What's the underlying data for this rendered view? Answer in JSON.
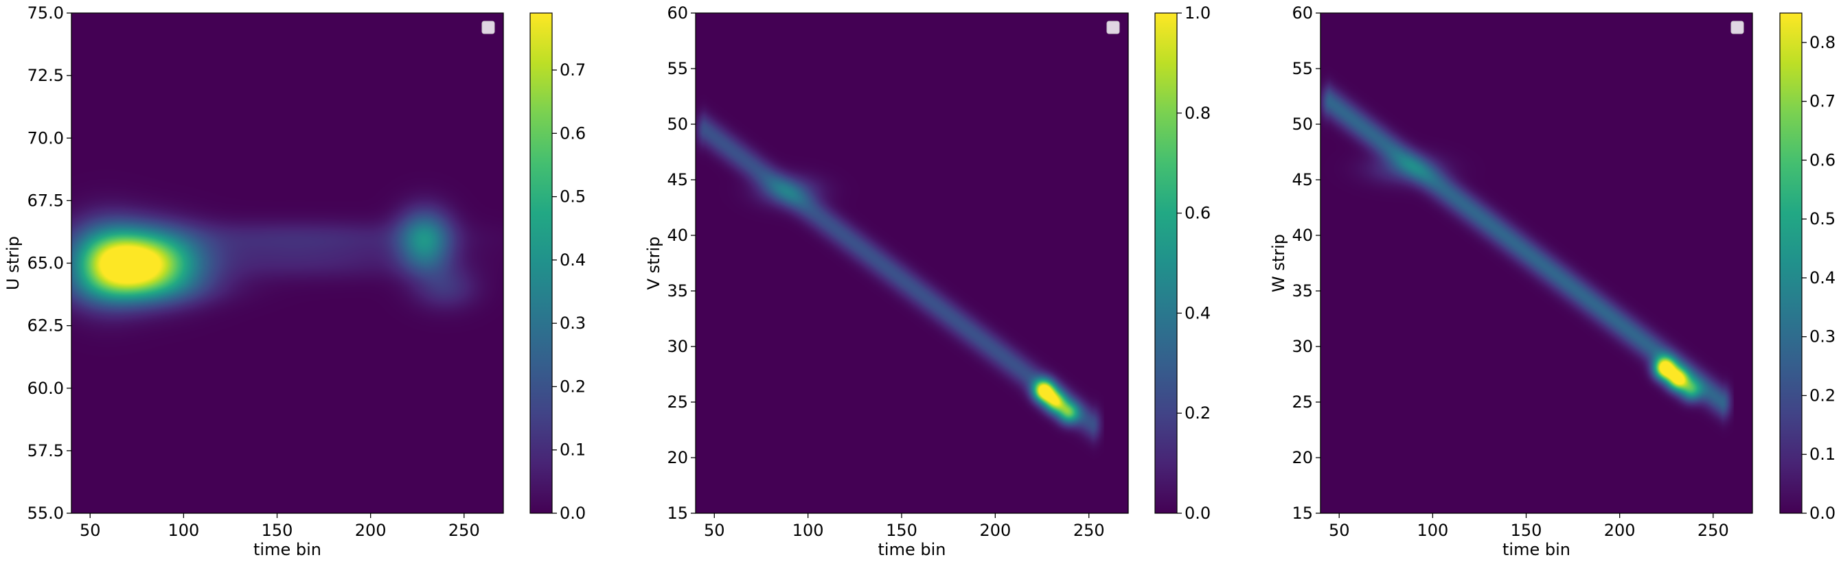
{
  "chart_data": [
    {
      "type": "heatmap",
      "xlabel": "time bin",
      "ylabel": "U strip",
      "xlim": [
        40,
        271
      ],
      "ylim": [
        55.0,
        75.0
      ],
      "xticks": [
        50,
        100,
        150,
        200,
        250
      ],
      "yticks": [
        55.0,
        57.5,
        60.0,
        62.5,
        65.0,
        67.5,
        70.0,
        72.5,
        75.0
      ],
      "ytick_labels": [
        "55.0",
        "57.5",
        "60.0",
        "62.5",
        "65.0",
        "67.5",
        "70.0",
        "72.5",
        "75.0"
      ],
      "colorbar": {
        "min": 0.0,
        "max": 0.79,
        "ticks": [
          0.0,
          0.1,
          0.2,
          0.3,
          0.4,
          0.5,
          0.6,
          0.7
        ],
        "tick_labels": [
          "0.0",
          "0.1",
          "0.2",
          "0.3",
          "0.4",
          "0.5",
          "0.6",
          "0.7"
        ]
      },
      "colormap": "viridis",
      "legend": "top-right",
      "legend_entries": [],
      "blobs": [
        {
          "x": 78,
          "y": 65.0,
          "sx": 20,
          "sy": 0.9,
          "value": 0.79
        },
        {
          "x": 58,
          "y": 65.0,
          "sx": 14,
          "sy": 1.1,
          "value": 0.35
        },
        {
          "x": 80,
          "y": 64.0,
          "sx": 28,
          "sy": 0.5,
          "value": 0.12
        },
        {
          "x": 160,
          "y": 66.0,
          "sx": 55,
          "sy": 0.5,
          "value": 0.1
        },
        {
          "x": 160,
          "y": 65.0,
          "sx": 50,
          "sy": 0.5,
          "value": 0.07
        },
        {
          "x": 229,
          "y": 66.0,
          "sx": 10,
          "sy": 0.8,
          "value": 0.36
        },
        {
          "x": 240,
          "y": 64.0,
          "sx": 12,
          "sy": 0.6,
          "value": 0.12
        },
        {
          "x": 230,
          "y": 65.0,
          "sx": 10,
          "sy": 0.5,
          "value": 0.06
        }
      ]
    },
    {
      "type": "heatmap",
      "xlabel": "time bin",
      "ylabel": "V strip",
      "xlim": [
        40,
        271
      ],
      "ylim": [
        15,
        60
      ],
      "xticks": [
        50,
        100,
        150,
        200,
        250
      ],
      "yticks": [
        15,
        20,
        25,
        30,
        35,
        40,
        45,
        50,
        55,
        60
      ],
      "ytick_labels": [
        "15",
        "20",
        "25",
        "30",
        "35",
        "40",
        "45",
        "50",
        "55",
        "60"
      ],
      "colorbar": {
        "min": 0.0,
        "max": 1.0,
        "ticks": [
          0.0,
          0.2,
          0.4,
          0.6,
          0.8,
          1.0
        ],
        "tick_labels": [
          "0.0",
          "0.2",
          "0.4",
          "0.6",
          "0.8",
          "1.0"
        ]
      },
      "colormap": "viridis",
      "legend": "top-right",
      "legend_entries": [],
      "track": {
        "start": [
          45,
          49.5
        ],
        "end": [
          252,
          23
        ],
        "sigma_strip": 1.0,
        "value": 0.25
      },
      "blobs": [
        {
          "x": 226,
          "y": 26,
          "sx": 4,
          "sy": 0.7,
          "value": 0.95
        },
        {
          "x": 232,
          "y": 25,
          "sx": 4,
          "sy": 0.7,
          "value": 0.7
        },
        {
          "x": 239,
          "y": 24,
          "sx": 4,
          "sy": 0.7,
          "value": 0.55
        },
        {
          "x": 90,
          "y": 44,
          "sx": 12,
          "sy": 1.0,
          "value": 0.2
        }
      ]
    },
    {
      "type": "heatmap",
      "xlabel": "time bin",
      "ylabel": "W strip",
      "xlim": [
        40,
        271
      ],
      "ylim": [
        15,
        60
      ],
      "xticks": [
        50,
        100,
        150,
        200,
        250
      ],
      "yticks": [
        15,
        20,
        25,
        30,
        35,
        40,
        45,
        50,
        55,
        60
      ],
      "ytick_labels": [
        "15",
        "20",
        "25",
        "30",
        "35",
        "40",
        "45",
        "50",
        "55",
        "60"
      ],
      "colorbar": {
        "min": 0.0,
        "max": 0.85,
        "ticks": [
          0.0,
          0.1,
          0.2,
          0.3,
          0.4,
          0.5,
          0.6,
          0.7,
          0.8
        ],
        "tick_labels": [
          "0.0",
          "0.1",
          "0.2",
          "0.3",
          "0.4",
          "0.5",
          "0.6",
          "0.7",
          "0.8"
        ]
      },
      "colormap": "viridis",
      "legend": "top-right",
      "legend_entries": [],
      "track": {
        "start": [
          45,
          52
        ],
        "end": [
          255,
          25
        ],
        "sigma_strip": 1.0,
        "value": 0.28
      },
      "blobs": [
        {
          "x": 224,
          "y": 28,
          "sx": 4,
          "sy": 0.7,
          "value": 0.85
        },
        {
          "x": 231,
          "y": 27,
          "sx": 4,
          "sy": 0.7,
          "value": 0.75
        },
        {
          "x": 238,
          "y": 26,
          "sx": 4,
          "sy": 0.7,
          "value": 0.4
        },
        {
          "x": 85,
          "y": 46,
          "sx": 14,
          "sy": 1.0,
          "value": 0.15
        }
      ]
    }
  ]
}
